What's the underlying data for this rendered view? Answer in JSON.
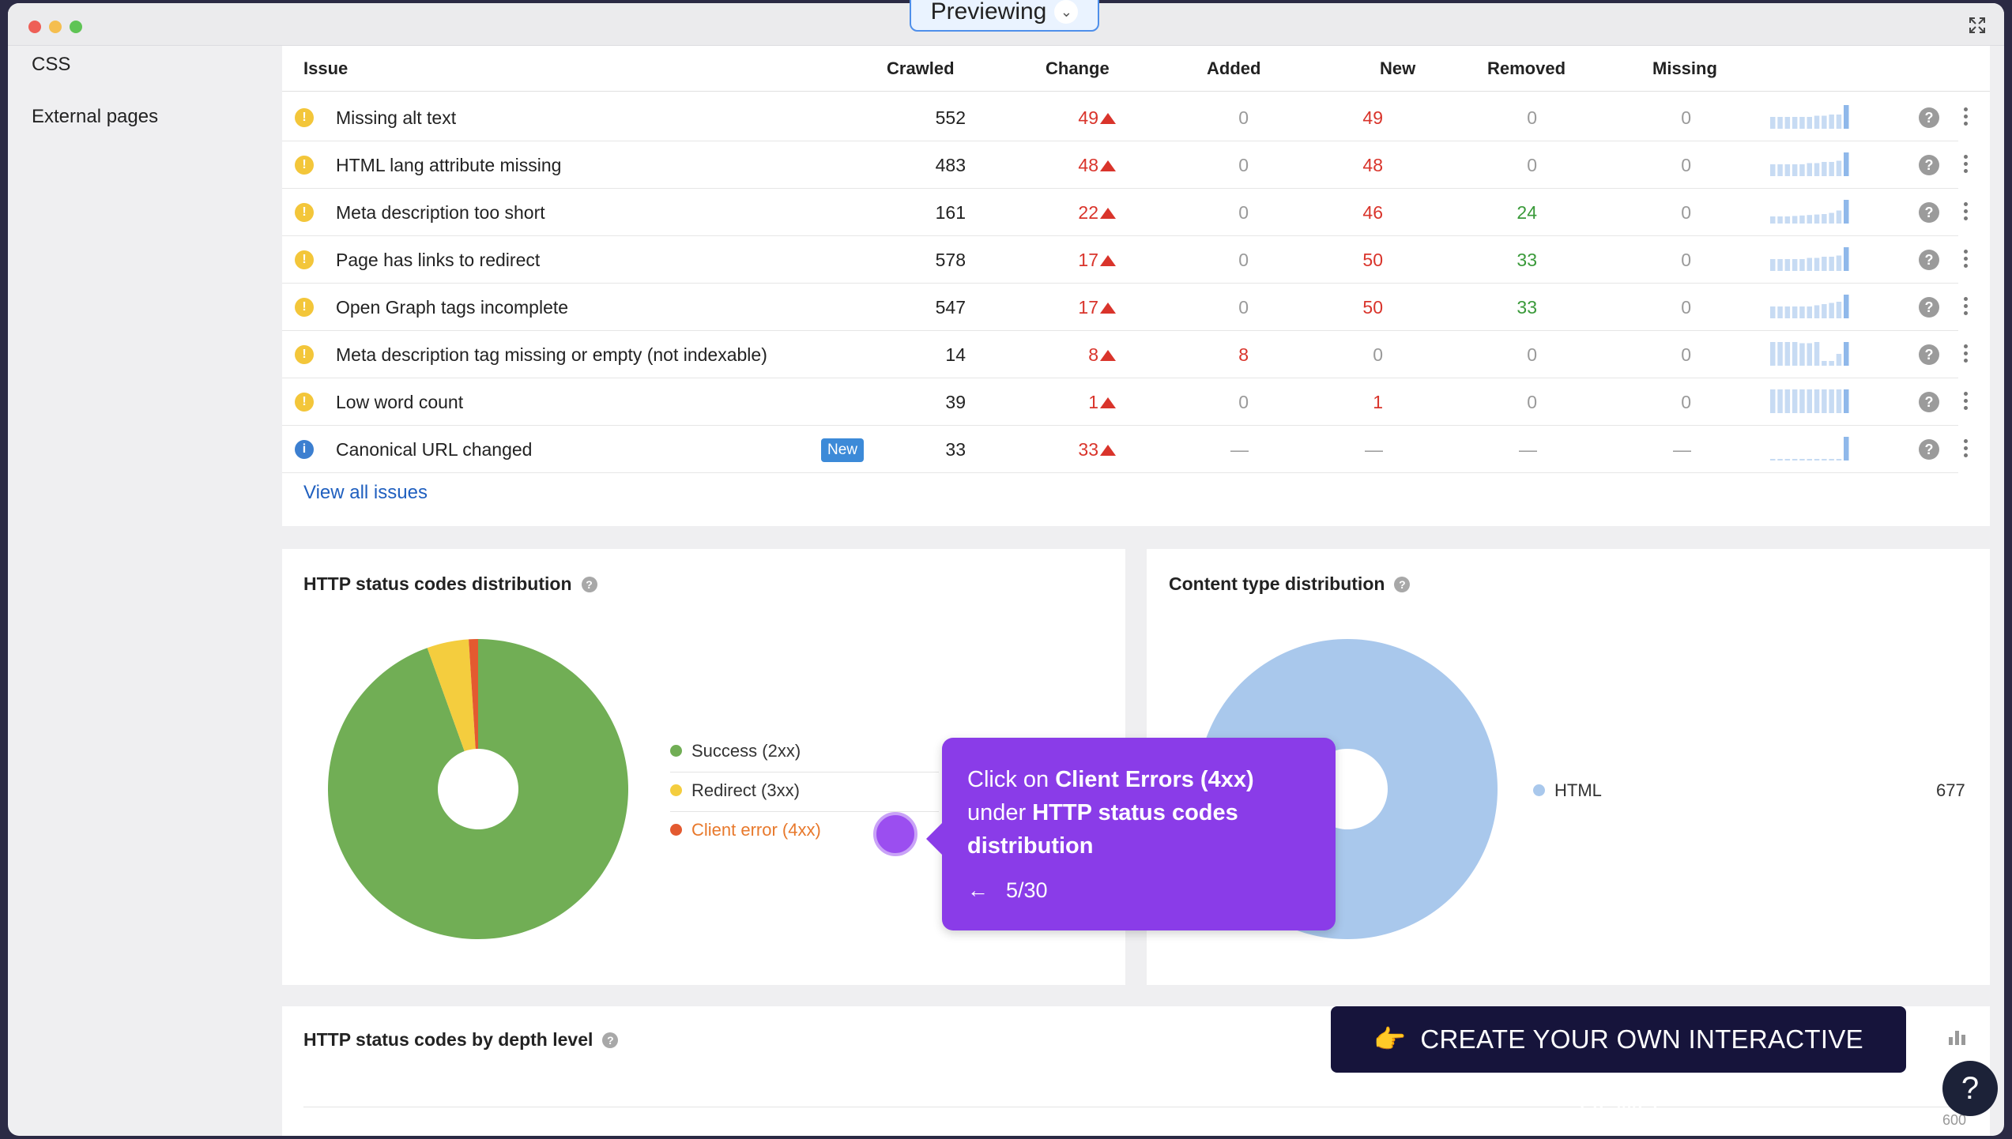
{
  "window": {
    "previewing_label": "Previewing"
  },
  "sidebar": {
    "items": [
      {
        "label": "CSS"
      },
      {
        "label": "External pages"
      }
    ]
  },
  "issues_table": {
    "columns": [
      "Issue",
      "Crawled",
      "Change",
      "Added",
      "New",
      "Removed",
      "Missing"
    ],
    "rows": [
      {
        "icon": "warning-icon",
        "issue": "Missing alt text",
        "badge": "",
        "crawled": "552",
        "change": "49",
        "added": "0",
        "new": "49",
        "removed": "0",
        "missing": "0",
        "trend": [
          0.5,
          0.5,
          0.5,
          0.5,
          0.5,
          0.5,
          0.55,
          0.55,
          0.6,
          0.6,
          1.0
        ]
      },
      {
        "icon": "warning-icon",
        "issue": "HTML lang attribute missing",
        "badge": "",
        "crawled": "483",
        "change": "48",
        "added": "0",
        "new": "48",
        "removed": "0",
        "missing": "0",
        "trend": [
          0.5,
          0.5,
          0.5,
          0.5,
          0.5,
          0.55,
          0.55,
          0.6,
          0.6,
          0.65,
          1.0
        ]
      },
      {
        "icon": "warning-icon",
        "issue": "Meta description too short",
        "badge": "",
        "crawled": "161",
        "change": "22",
        "added": "0",
        "new": "46",
        "removed": "24",
        "missing": "0",
        "trend": [
          0.3,
          0.3,
          0.3,
          0.32,
          0.34,
          0.36,
          0.38,
          0.4,
          0.45,
          0.55,
          1.0
        ]
      },
      {
        "icon": "warning-icon",
        "issue": "Page has links to redirect",
        "badge": "",
        "crawled": "578",
        "change": "17",
        "added": "0",
        "new": "50",
        "removed": "33",
        "missing": "0",
        "trend": [
          0.5,
          0.5,
          0.5,
          0.5,
          0.5,
          0.55,
          0.55,
          0.6,
          0.6,
          0.65,
          1.0
        ]
      },
      {
        "icon": "warning-icon",
        "issue": "Open Graph tags incomplete",
        "badge": "",
        "crawled": "547",
        "change": "17",
        "added": "0",
        "new": "50",
        "removed": "33",
        "missing": "0",
        "trend": [
          0.5,
          0.5,
          0.5,
          0.5,
          0.5,
          0.5,
          0.55,
          0.6,
          0.65,
          0.7,
          1.0
        ]
      },
      {
        "icon": "warning-icon",
        "issue": "Meta description tag missing or empty (not indexable)",
        "badge": "",
        "crawled": "14",
        "change": "8",
        "added": "8",
        "new": "0",
        "removed": "0",
        "missing": "0",
        "trend": [
          1.0,
          1.0,
          1.0,
          1.0,
          0.95,
          0.95,
          1.0,
          0.2,
          0.2,
          0.5,
          1.0
        ]
      },
      {
        "icon": "warning-icon",
        "issue": "Low word count",
        "badge": "",
        "crawled": "39",
        "change": "1",
        "added": "0",
        "new": "1",
        "removed": "0",
        "missing": "0",
        "trend": [
          1.0,
          1.0,
          1.0,
          1.0,
          1.0,
          1.0,
          1.0,
          1.0,
          1.0,
          1.0,
          1.0
        ]
      },
      {
        "icon": "info-icon",
        "issue": "Canonical URL changed",
        "badge": "New",
        "crawled": "33",
        "change": "33",
        "added": "—",
        "new": "—",
        "removed": "—",
        "missing": "—",
        "trend": [
          0.04,
          0.04,
          0.04,
          0.04,
          0.04,
          0.04,
          0.04,
          0.04,
          0.04,
          0.04,
          1.0
        ]
      }
    ],
    "view_all_label": "View all issues"
  },
  "http_status_card": {
    "title": "HTTP status codes distribution",
    "legend": [
      {
        "label": "Success (2xx)",
        "color": "#71ae55"
      },
      {
        "label": "Redirect (3xx)",
        "color": "#f4cd3e"
      },
      {
        "label": "Client error (4xx)",
        "color": "#e35a30"
      }
    ]
  },
  "content_type_card": {
    "title": "Content type distribution",
    "legend": [
      {
        "label": "HTML",
        "value": "677",
        "color": "#a9c8ec"
      }
    ]
  },
  "depth_card": {
    "title": "HTTP status codes by depth level",
    "axis_label": "600"
  },
  "chart_data": [
    {
      "type": "pie",
      "title": "HTTP status codes distribution",
      "categories": [
        "Success (2xx)",
        "Redirect (3xx)",
        "Client error (4xx)"
      ],
      "values": [
        94.5,
        4.5,
        1.0
      ]
    },
    {
      "type": "pie",
      "title": "Content type distribution",
      "categories": [
        "HTML"
      ],
      "values": [
        677
      ]
    }
  ],
  "tooltip": {
    "line1_pre": "Click on ",
    "line1_bold": "Client Errors (4xx)",
    "line2_pre": "under ",
    "line2_bold": "HTTP status codes distribution",
    "step": "5/30"
  },
  "cta": {
    "emoji": "👉",
    "label": "CREATE YOUR OWN INTERACTIVE DEMO"
  },
  "help_fab": {
    "label": "?"
  }
}
